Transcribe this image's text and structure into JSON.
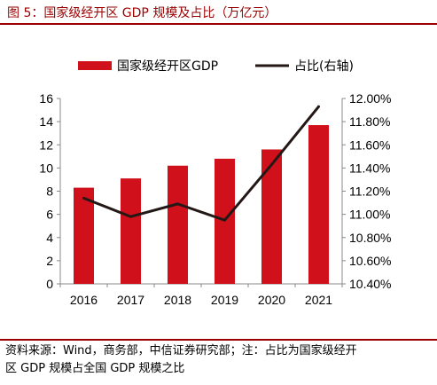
{
  "title": "图 5：国家级经开区 GDP 规模及占比（万亿元）",
  "source_line1": "资料来源：Wind，商务部，中信证券研究部；注：占比为国家级经开",
  "source_line2": "区 GDP 规模占全国 GDP 规模之比",
  "colors": {
    "bar": "#d0101a",
    "line": "#231816",
    "accent": "#9a0000"
  },
  "chart_data": {
    "type": "bar",
    "categories": [
      "2016",
      "2017",
      "2018",
      "2019",
      "2020",
      "2021"
    ],
    "series": [
      {
        "name": "国家级经开区GDP",
        "type": "bar",
        "axis": "left",
        "values": [
          8.3,
          9.1,
          10.2,
          10.8,
          11.6,
          13.7
        ]
      },
      {
        "name": "占比(右轴)",
        "type": "line",
        "axis": "right",
        "values": [
          11.14,
          10.98,
          11.09,
          10.95,
          11.43,
          11.93
        ]
      }
    ],
    "ylim": [
      0,
      16
    ],
    "yticks": [
      "0",
      "2",
      "4",
      "6",
      "8",
      "10",
      "12",
      "14",
      "16"
    ],
    "y2lim": [
      10.4,
      12.0
    ],
    "y2ticks": [
      "10.40%",
      "10.60%",
      "10.80%",
      "11.00%",
      "11.20%",
      "11.40%",
      "11.60%",
      "11.80%",
      "12.00%"
    ],
    "legend": {
      "position": "top",
      "items": [
        "国家级经开区GDP",
        "占比(右轴)"
      ]
    },
    "grid": false
  }
}
